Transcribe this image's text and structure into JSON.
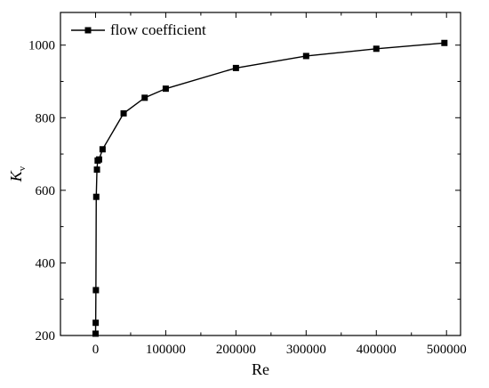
{
  "chart_data": {
    "type": "line",
    "title": "",
    "xlabel": "Re",
    "ylabel": "K",
    "ylabel_subscript": "v",
    "xlim": [
      -50000,
      520000
    ],
    "ylim": [
      200,
      1090
    ],
    "xticks": [
      0,
      100000,
      200000,
      300000,
      400000,
      500000
    ],
    "xtick_labels": [
      "0",
      "100000",
      "200000",
      "300000",
      "400000",
      "500000"
    ],
    "yticks": [
      200,
      400,
      600,
      800,
      1000
    ],
    "ytick_labels": [
      "200",
      "400",
      "600",
      "800",
      "1000"
    ],
    "grid": false,
    "legend_position": "top-left",
    "series": [
      {
        "name": "flow coefficient",
        "marker": "square",
        "color": "#000000",
        "x": [
          0,
          200,
          500,
          1000,
          2000,
          3000,
          5000,
          10000,
          40000,
          70000,
          100000,
          200000,
          300000,
          400000,
          497000
        ],
        "y": [
          205,
          235,
          325,
          582,
          657,
          682,
          685,
          713,
          812,
          855,
          880,
          937,
          970,
          990,
          1006
        ]
      }
    ]
  }
}
